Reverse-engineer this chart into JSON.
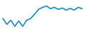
{
  "x": [
    0,
    1,
    2,
    3,
    4,
    5,
    6,
    7,
    8,
    9,
    10,
    11,
    12,
    13,
    14,
    15,
    16,
    17,
    18,
    19,
    20
  ],
  "y": [
    55,
    38,
    50,
    32,
    48,
    32,
    50,
    55,
    68,
    82,
    88,
    92,
    84,
    88,
    82,
    86,
    80,
    85,
    80,
    88,
    84
  ],
  "line_color": "#3399cc",
  "linewidth": 1.4,
  "background_color": "#ffffff",
  "ylim": [
    20,
    105
  ],
  "xlim": [
    -0.3,
    20.3
  ]
}
